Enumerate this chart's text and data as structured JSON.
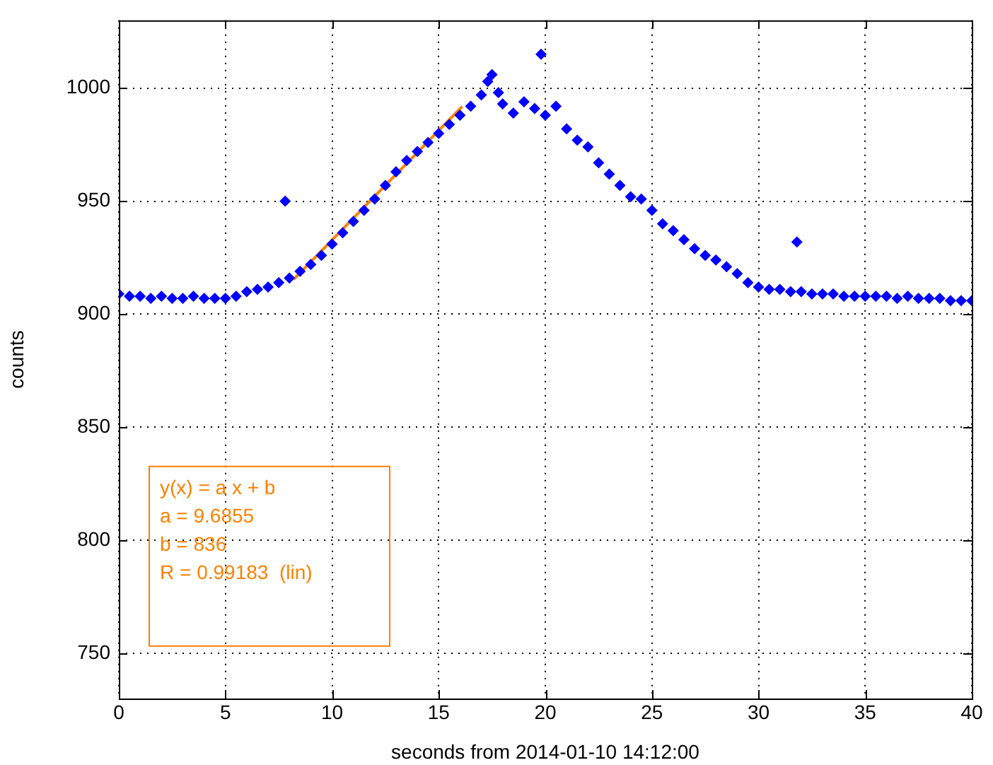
{
  "chart_data": {
    "type": "scatter",
    "xlabel": "seconds from 2014-01-10 14:12:00",
    "ylabel": "counts",
    "xlim": [
      0,
      40
    ],
    "xticks": [
      0,
      5,
      10,
      15,
      20,
      25,
      30,
      35,
      40
    ],
    "ylim": [
      730,
      1030
    ],
    "yticks": [
      750,
      800,
      850,
      900,
      950,
      1000
    ],
    "grid": true,
    "legend": false,
    "marker": "diamond",
    "series": [
      {
        "type": "scatter",
        "color": "#0000ff",
        "x": [
          0,
          0.5,
          1,
          1.5,
          2,
          2.5,
          3,
          3.5,
          4,
          4.5,
          5,
          5.5,
          6,
          6.5,
          7,
          7.5,
          7.8,
          8,
          8.5,
          9,
          9.5,
          10,
          10.5,
          11,
          11.5,
          12,
          12.5,
          13,
          13.5,
          14,
          14.5,
          15,
          15.5,
          16,
          16.5,
          17,
          17.3,
          17.5,
          17.8,
          18,
          18.5,
          19,
          19.5,
          19.8,
          20,
          20.5,
          21,
          21.5,
          22,
          22.5,
          23,
          23.5,
          24,
          24.5,
          25,
          25.5,
          26,
          26.5,
          27,
          27.5,
          28,
          28.5,
          29,
          29.5,
          30,
          30.5,
          31,
          31.5,
          31.8,
          32,
          32.5,
          33,
          33.5,
          34,
          34.5,
          35,
          35.5,
          36,
          36.5,
          37,
          37.5,
          38,
          38.5,
          39,
          39.5,
          40
        ],
        "values": [
          909,
          908,
          908,
          907,
          908,
          907,
          907,
          908,
          907,
          907,
          907,
          908,
          910,
          911,
          912,
          914,
          950,
          916,
          919,
          922,
          926,
          931,
          936,
          941,
          946,
          951,
          957,
          963,
          968,
          972,
          976,
          980,
          984,
          988,
          992,
          997,
          1003,
          1006,
          998,
          993,
          989,
          994,
          991,
          1015,
          988,
          992,
          982,
          977,
          974,
          967,
          962,
          957,
          952,
          951,
          946,
          940,
          937,
          933,
          929,
          926,
          924,
          921,
          918,
          914,
          912,
          911,
          911,
          910,
          932,
          910,
          909,
          909,
          909,
          908,
          908,
          908,
          908,
          908,
          907,
          908,
          907,
          907,
          907,
          906,
          906,
          906
        ]
      },
      {
        "type": "line",
        "color": "#ff8000",
        "line_style": "solid",
        "marker": "none",
        "x": [
          8.2,
          16.1
        ],
        "values": [
          915.4,
          991.9
        ]
      }
    ],
    "annotations": [
      "y(x) = a x + b",
      "a = 9.6855",
      "b = 836",
      "R = 0.99183  (lin)"
    ]
  }
}
